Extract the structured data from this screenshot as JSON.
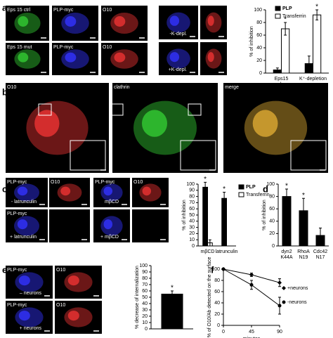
{
  "panel_letters": [
    "a",
    "b",
    "c",
    "d",
    "e",
    "f"
  ],
  "images": [
    {
      "label": "Eps 15 ctrl"
    },
    {
      "label": "PLP-myc"
    },
    {
      "label": "O10"
    },
    {
      "label": "Eps 15 mut"
    },
    {
      "label": "PLP-myc"
    },
    {
      "label": "O10"
    },
    {
      "caption": "-K-depl."
    },
    {
      "caption": "+K-depl."
    },
    {
      "label": "O10"
    },
    {
      "label": "clathrin"
    },
    {
      "label": "merge"
    },
    {
      "label": "PLP-myc",
      "caption": "- latrunculin"
    },
    {
      "label": "O10"
    },
    {
      "label": "PLP-myc",
      "caption": "+ latrunculin"
    },
    {
      "label": "PLP-myc",
      "caption": "mβCD"
    },
    {
      "label": "O10"
    },
    {
      "caption": "+ mβCD"
    },
    {
      "label": "PLP-myc",
      "caption": "– neurons"
    },
    {
      "label": "O10"
    },
    {
      "label": "PLP-myc",
      "caption": "+ neurons"
    },
    {
      "label": "O10"
    }
  ],
  "chart_data": [
    {
      "type": "bar",
      "ylabel": "% of inhibition",
      "categories": [
        "Eps15 dn",
        "K⁺-depletion"
      ],
      "series": [
        {
          "name": "PLP",
          "color": "#000000",
          "values": [
            5,
            15
          ],
          "errors": [
            3,
            12
          ],
          "significance": [
            null,
            null
          ]
        },
        {
          "name": "Transferrin",
          "color": "#ffffff",
          "values": [
            70,
            92
          ],
          "errors": [
            10,
            8
          ],
          "significance": [
            "*",
            "*"
          ]
        }
      ],
      "ylim": [
        0,
        100
      ],
      "yticks": [
        0,
        20,
        40,
        60,
        80,
        100
      ]
    },
    {
      "type": "bar",
      "ylabel": "% of inhibition",
      "categories": [
        "mβCD",
        "latrunculin"
      ],
      "series": [
        {
          "name": "PLP",
          "color": "#000000",
          "values": [
            95,
            77
          ],
          "errors": [
            8,
            10
          ],
          "significance": [
            "*",
            "*"
          ]
        },
        {
          "name": "Transferrin",
          "color": "#ffffff",
          "values": [
            5,
            null
          ],
          "errors": [
            5,
            null
          ],
          "significance": [
            null,
            null
          ]
        }
      ],
      "ylim": [
        0,
        100
      ],
      "yticks": [
        0,
        10,
        20,
        30,
        40,
        50,
        60,
        70,
        80,
        90,
        100
      ]
    },
    {
      "type": "bar",
      "ylabel": "% of inhibition",
      "categories": [
        "dyn2 K44A",
        "RhoA N19",
        "Cdc42 N17"
      ],
      "series": [
        {
          "color": "#000000",
          "values": [
            80,
            57,
            17
          ],
          "errors": [
            12,
            20,
            12
          ],
          "significance": [
            "*",
            "*",
            null
          ]
        }
      ],
      "ylim": [
        0,
        100
      ],
      "yticks": [
        0,
        20,
        40,
        60,
        80,
        100
      ]
    },
    {
      "type": "bar",
      "ylabel": "% decrease of internalization",
      "categories": [
        null
      ],
      "series": [
        {
          "color": "#000000",
          "values": [
            55
          ],
          "errors": [
            5
          ],
          "significance": [
            "*"
          ]
        }
      ],
      "ylim": [
        0,
        100
      ],
      "yticks": [
        0,
        10,
        20,
        30,
        40,
        50,
        60,
        70,
        80,
        90,
        100
      ]
    },
    {
      "type": "line",
      "ylabel": "% of O10/Ab detected on the surface",
      "xlabel": "minutes",
      "x": [
        0,
        45,
        90
      ],
      "series": [
        {
          "name": "+neurons",
          "color": "#000000",
          "marker": "diamond",
          "values": [
            100,
            90,
            76
          ],
          "errors": [
            0,
            3,
            7
          ]
        },
        {
          "name": "-neurons",
          "color": "#000000",
          "marker": "circle",
          "values": [
            100,
            72,
            35
          ],
          "errors": [
            0,
            8,
            15
          ]
        }
      ],
      "xlim": [
        0,
        90
      ],
      "xticks": [
        0,
        45,
        90
      ],
      "ylim": [
        0,
        100
      ],
      "yticks": [
        0,
        20,
        40,
        60,
        80,
        100
      ]
    }
  ]
}
